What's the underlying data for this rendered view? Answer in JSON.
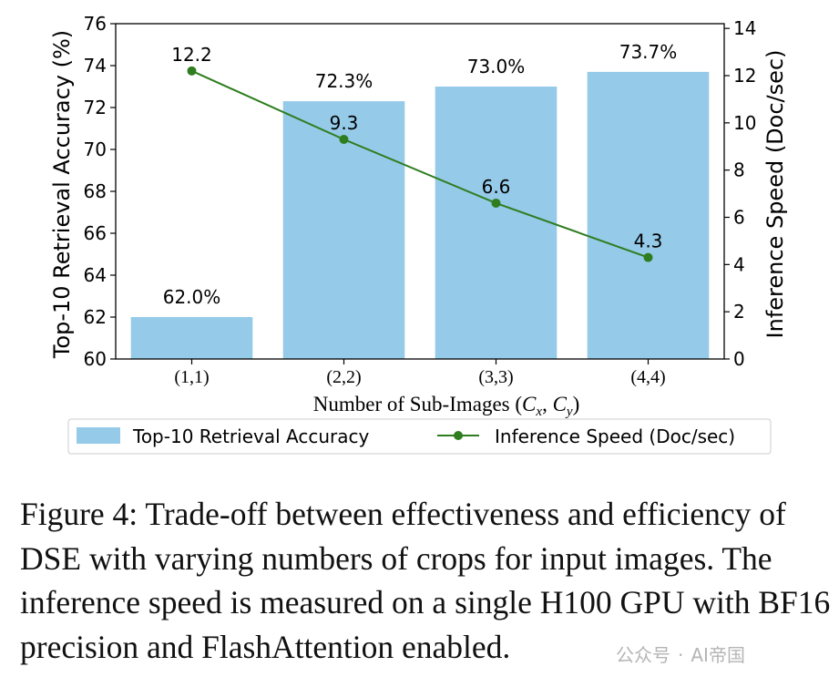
{
  "chart_data": {
    "type": "bar+line",
    "categories": [
      "(1,1)",
      "(2,2)",
      "(3,3)",
      "(4,4)"
    ],
    "xlabel": "Number of Sub-Images (C_x, C_y)",
    "xlabel_main": "Number of Sub-Images (",
    "xlabel_c1": "C",
    "xlabel_s1": "x",
    "xlabel_sep": ", ",
    "xlabel_c2": "C",
    "xlabel_s2": "y",
    "xlabel_close": ")",
    "left_axis": {
      "label": "Top-10 Retrieval Accuracy (%)",
      "ylim": [
        60,
        76
      ],
      "ticks": [
        60,
        62,
        64,
        66,
        68,
        70,
        72,
        74,
        76
      ]
    },
    "right_axis": {
      "label": "Inference Speed (Doc/sec)",
      "ylim": [
        0,
        14.2
      ],
      "ticks": [
        0,
        2,
        4,
        6,
        8,
        10,
        12,
        14
      ]
    },
    "series": [
      {
        "name": "Top-10 Retrieval Accuracy",
        "kind": "bar",
        "axis": "left",
        "values": [
          62.0,
          72.3,
          73.0,
          73.7
        ],
        "labels": [
          "62.0%",
          "72.3%",
          "73.0%",
          "73.7%"
        ],
        "color": "#95cae8"
      },
      {
        "name": "Inference Speed (Doc/sec)",
        "kind": "line",
        "axis": "right",
        "values": [
          12.2,
          9.3,
          6.6,
          4.3
        ],
        "labels": [
          "12.2",
          "9.3",
          "6.6",
          "4.3"
        ],
        "color": "#2e7d1f"
      }
    ],
    "legend": {
      "placement": "bottom"
    },
    "grid": false
  },
  "caption": "Figure 4: Trade-off between effectiveness and efficiency of DSE with varying numbers of crops for input images. The inference speed is measured on a single H100 GPU with BF16 precision and FlashAttention enabled.",
  "watermark": {
    "left": "公众号",
    "right": "AI帝国"
  }
}
